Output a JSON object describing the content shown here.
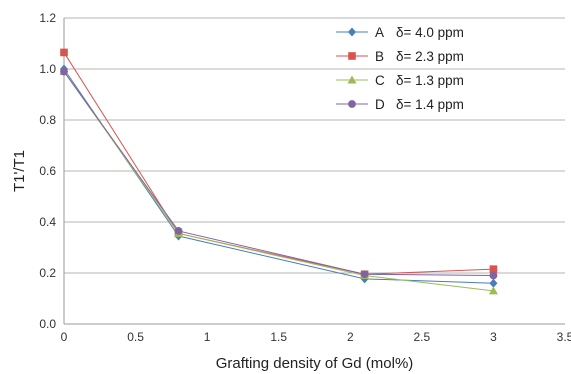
{
  "chart_data": {
    "type": "line",
    "xlabel": "Grafting density of Gd (mol%)",
    "ylabel": "T1'/T1",
    "xlim": [
      0,
      3.5
    ],
    "ylim": [
      0,
      1.2
    ],
    "xticks": [
      "0",
      "0.5",
      "1",
      "1.5",
      "2",
      "2.5",
      "3",
      "3.5"
    ],
    "yticks": [
      "0.0",
      "0.2",
      "0.4",
      "0.6",
      "0.8",
      "1.0",
      "1.2"
    ],
    "grid": "horizontal",
    "legend_position": "top-right",
    "x": [
      0,
      0.8,
      2.1,
      3
    ],
    "series": [
      {
        "name": "A",
        "label": "δ= 4.0 ppm",
        "marker": "diamond",
        "color": "#4a7ebb",
        "values": [
          1.0,
          0.345,
          0.177,
          0.16
        ]
      },
      {
        "name": "B",
        "label": "δ= 2.3 ppm",
        "marker": "square",
        "color": "#d9534f",
        "values": [
          1.065,
          0.355,
          0.195,
          0.215
        ]
      },
      {
        "name": "C",
        "label": "δ= 1.3 ppm",
        "marker": "triangle",
        "color": "#9bbb59",
        "values": [
          0.99,
          0.355,
          0.19,
          0.13
        ]
      },
      {
        "name": "D",
        "label": "δ= 1.4 ppm",
        "marker": "circle",
        "color": "#8064a2",
        "values": [
          0.99,
          0.365,
          0.195,
          0.19
        ]
      }
    ]
  }
}
